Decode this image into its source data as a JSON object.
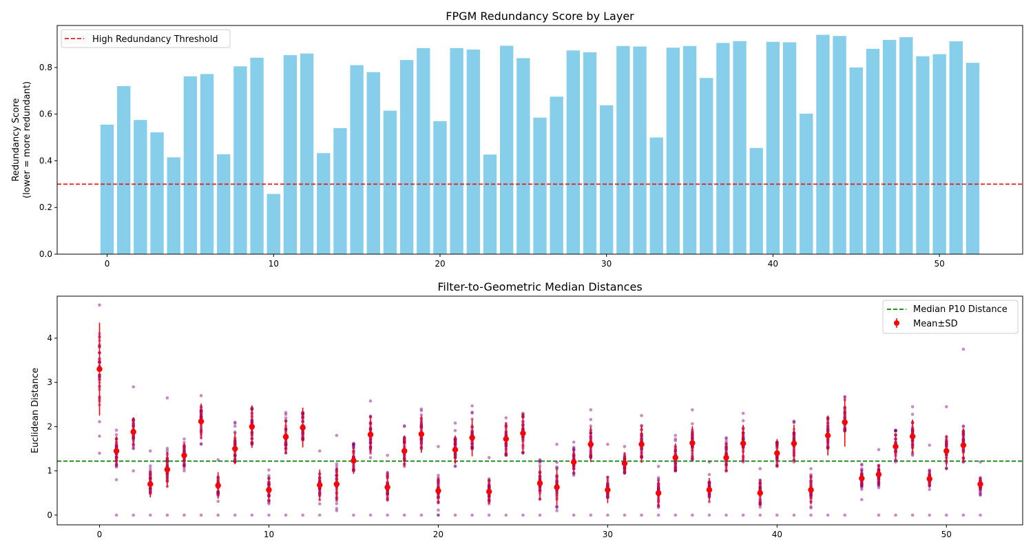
{
  "chart_data": [
    {
      "type": "bar",
      "title": "FPGM Redundancy Score by Layer",
      "ylabel_line1": "Redundancy Score",
      "ylabel_line2": "(lower = more redundant)",
      "xlabel": "",
      "xlim": [
        -3,
        55
      ],
      "ylim": [
        0,
        0.98
      ],
      "x_ticks": [
        0,
        10,
        20,
        30,
        40,
        50
      ],
      "y_ticks": [
        0.0,
        0.2,
        0.4,
        0.6,
        0.8
      ],
      "y_tick_labels": [
        "0.0",
        "0.2",
        "0.4",
        "0.6",
        "0.8"
      ],
      "bar_color": "#87ceeb",
      "threshold": {
        "value": 0.3,
        "label": "High Redundancy Threshold",
        "color": "#e31a1c",
        "style": "dashed"
      },
      "legend_position": "upper left",
      "values": [
        0.555,
        0.72,
        0.575,
        0.522,
        0.415,
        0.762,
        0.772,
        0.428,
        0.805,
        0.842,
        0.258,
        0.853,
        0.86,
        0.433,
        0.54,
        0.81,
        0.78,
        0.615,
        0.832,
        0.883,
        0.57,
        0.883,
        0.877,
        0.427,
        0.893,
        0.84,
        0.585,
        0.675,
        0.873,
        0.865,
        0.638,
        0.892,
        0.89,
        0.5,
        0.885,
        0.892,
        0.755,
        0.905,
        0.913,
        0.455,
        0.91,
        0.908,
        0.602,
        0.94,
        0.935,
        0.8,
        0.88,
        0.918,
        0.93,
        0.848,
        0.857,
        0.912,
        0.82
      ]
    },
    {
      "type": "scatter",
      "title": "Filter-to-Geometric Median Distances",
      "ylabel": "Euclidean Distance",
      "xlabel": "",
      "xlim": [
        -2.5,
        54.5
      ],
      "ylim": [
        -0.22,
        4.95
      ],
      "x_ticks": [
        0,
        10,
        20,
        30,
        40,
        50
      ],
      "y_ticks": [
        0,
        1,
        2,
        3,
        4
      ],
      "point_color": "#800080",
      "median_line": {
        "value": 1.22,
        "label": "Median P10 Distance",
        "color": "#008000",
        "style": "dashed"
      },
      "mean_sd_label": "Mean±SD",
      "mean_color": "#ff0000",
      "legend_position": "upper right",
      "mean": [
        3.3,
        1.45,
        1.88,
        0.7,
        1.03,
        1.35,
        2.12,
        0.67,
        1.5,
        2.0,
        0.57,
        1.77,
        1.98,
        0.68,
        0.7,
        1.23,
        1.82,
        0.63,
        1.45,
        1.83,
        0.55,
        1.48,
        1.75,
        0.53,
        1.72,
        1.85,
        0.72,
        0.63,
        1.2,
        1.6,
        0.57,
        1.17,
        1.6,
        0.5,
        1.3,
        1.63,
        0.57,
        1.3,
        1.62,
        0.5,
        1.4,
        1.62,
        0.57,
        1.8,
        2.1,
        0.83,
        0.92,
        1.55,
        1.78,
        0.82,
        1.45,
        1.58,
        0.7
      ],
      "sd": [
        1.05,
        0.33,
        0.33,
        0.3,
        0.4,
        0.28,
        0.4,
        0.3,
        0.35,
        0.48,
        0.28,
        0.38,
        0.45,
        0.35,
        0.38,
        0.3,
        0.42,
        0.32,
        0.35,
        0.42,
        0.3,
        0.32,
        0.42,
        0.28,
        0.38,
        0.45,
        0.38,
        0.4,
        0.25,
        0.4,
        0.3,
        0.25,
        0.42,
        0.3,
        0.32,
        0.38,
        0.27,
        0.33,
        0.42,
        0.3,
        0.32,
        0.42,
        0.33,
        0.45,
        0.55,
        0.18,
        0.22,
        0.3,
        0.38,
        0.18,
        0.35,
        0.38,
        0.15
      ],
      "range": [
        [
          1.4,
          4.75
        ],
        [
          0.8,
          1.92
        ],
        [
          1.0,
          2.9
        ],
        [
          0.0,
          1.45
        ],
        [
          0.0,
          2.65
        ],
        [
          1.0,
          1.72
        ],
        [
          1.6,
          2.7
        ],
        [
          0.0,
          1.25
        ],
        [
          1.2,
          2.1
        ],
        [
          1.6,
          2.42
        ],
        [
          0.0,
          1.02
        ],
        [
          1.4,
          2.32
        ],
        [
          1.7,
          2.32
        ],
        [
          0.0,
          1.45
        ],
        [
          0.1,
          1.8
        ],
        [
          1.0,
          1.62
        ],
        [
          1.3,
          2.58
        ],
        [
          0.0,
          1.35
        ],
        [
          1.1,
          2.02
        ],
        [
          1.5,
          2.4
        ],
        [
          0.0,
          1.55
        ],
        [
          1.1,
          2.08
        ],
        [
          1.5,
          2.47
        ],
        [
          0.0,
          1.3
        ],
        [
          1.35,
          2.2
        ],
        [
          1.4,
          2.3
        ],
        [
          0.0,
          1.25
        ],
        [
          0.1,
          1.6
        ],
        [
          0.9,
          1.65
        ],
        [
          1.3,
          2.38
        ],
        [
          0.0,
          1.6
        ],
        [
          0.95,
          1.55
        ],
        [
          1.3,
          2.25
        ],
        [
          0.0,
          1.1
        ],
        [
          1.0,
          1.8
        ],
        [
          1.25,
          2.38
        ],
        [
          0.3,
          1.2
        ],
        [
          1.0,
          1.75
        ],
        [
          1.2,
          2.3
        ],
        [
          0.0,
          1.05
        ],
        [
          1.1,
          1.65
        ],
        [
          1.2,
          2.12
        ],
        [
          0.0,
          1.05
        ],
        [
          1.5,
          2.2
        ],
        [
          1.9,
          2.68
        ],
        [
          0.35,
          1.15
        ],
        [
          0.62,
          1.48
        ],
        [
          1.2,
          1.92
        ],
        [
          1.35,
          2.45
        ],
        [
          0.58,
          1.58
        ],
        [
          1.05,
          2.45
        ],
        [
          1.2,
          3.75
        ],
        [
          0.45,
          1.2
        ]
      ],
      "outliers_at_zero": [
        1,
        2,
        5,
        6,
        8,
        9,
        11,
        12,
        15,
        16,
        18,
        19,
        20,
        21,
        22,
        24,
        25,
        28,
        29,
        31,
        32,
        34,
        35,
        36,
        37,
        38,
        40,
        41,
        43,
        44,
        46,
        47,
        48,
        49,
        50,
        51,
        52
      ]
    }
  ]
}
